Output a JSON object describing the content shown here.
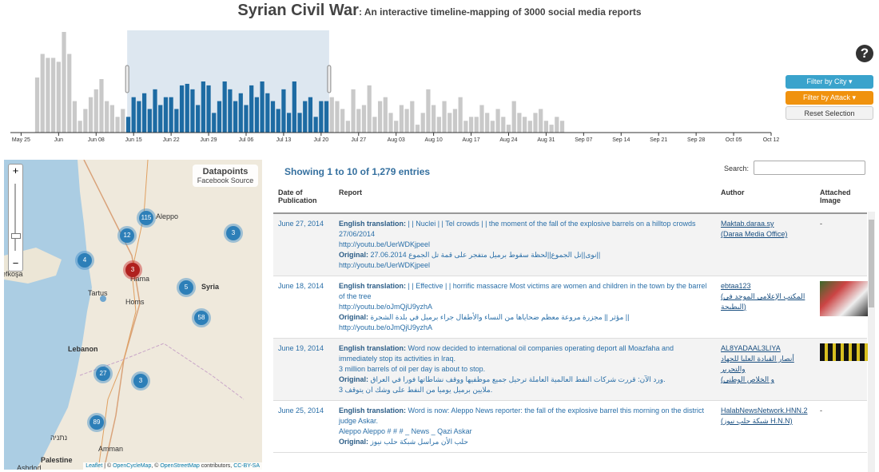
{
  "header": {
    "title": "Syrian Civil War",
    "subtitle": ": An interactive timeline-mapping of 3000 social media reports"
  },
  "chart_data": {
    "type": "bar",
    "xlim": [
      -2,
      140
    ],
    "ylim": [
      0,
      130
    ],
    "xticks": [
      {
        "value": 0,
        "label": "May 25"
      },
      {
        "value": 7,
        "label": "Jun"
      },
      {
        "value": 14,
        "label": "Jun 08"
      },
      {
        "value": 21,
        "label": "Jun 15"
      },
      {
        "value": 28,
        "label": "Jun 22"
      },
      {
        "value": 35,
        "label": "Jun 29"
      },
      {
        "value": 42,
        "label": "Jul 06"
      },
      {
        "value": 49,
        "label": "Jul 13"
      },
      {
        "value": 56,
        "label": "Jul 20"
      },
      {
        "value": 63,
        "label": "Jul 27"
      },
      {
        "value": 70,
        "label": "Aug 03"
      },
      {
        "value": 77,
        "label": "Aug 10"
      },
      {
        "value": 84,
        "label": "Aug 17"
      },
      {
        "value": 91,
        "label": "Aug 24"
      },
      {
        "value": 98,
        "label": "Aug 31"
      },
      {
        "value": 105,
        "label": "Sep 07"
      },
      {
        "value": 112,
        "label": "Sep 14"
      },
      {
        "value": 119,
        "label": "Sep 21"
      },
      {
        "value": 126,
        "label": "Sep 28"
      },
      {
        "value": 133,
        "label": "Oct 05"
      },
      {
        "value": 140,
        "label": "Oct 12"
      }
    ],
    "x": [
      3,
      4,
      5,
      6,
      7,
      8,
      9,
      10,
      11,
      12,
      13,
      14,
      15,
      16,
      17,
      18,
      19,
      20,
      21,
      22,
      23,
      24,
      25,
      26,
      27,
      28,
      29,
      30,
      31,
      32,
      33,
      34,
      35,
      36,
      37,
      38,
      39,
      40,
      41,
      42,
      43,
      44,
      45,
      46,
      47,
      48,
      49,
      50,
      51,
      52,
      53,
      54,
      55,
      56,
      57,
      58,
      59,
      60,
      61,
      62,
      63,
      64,
      65,
      66,
      67,
      68,
      69,
      70,
      71,
      72,
      73,
      74,
      75,
      76,
      77,
      78,
      79,
      80,
      81,
      82,
      83,
      84,
      85,
      86,
      87,
      88,
      89,
      90,
      91,
      92,
      93,
      94,
      95,
      96,
      97,
      98,
      99,
      100,
      101
    ],
    "values": [
      70,
      100,
      95,
      95,
      90,
      128,
      100,
      40,
      15,
      30,
      45,
      55,
      68,
      40,
      35,
      20,
      30,
      20,
      45,
      40,
      50,
      30,
      55,
      35,
      45,
      45,
      30,
      60,
      62,
      55,
      35,
      65,
      60,
      25,
      40,
      65,
      55,
      40,
      50,
      35,
      60,
      45,
      65,
      50,
      40,
      30,
      55,
      25,
      65,
      25,
      40,
      45,
      20,
      40,
      40,
      45,
      40,
      30,
      15,
      55,
      30,
      35,
      60,
      20,
      40,
      45,
      25,
      15,
      35,
      30,
      40,
      10,
      25,
      55,
      35,
      20,
      40,
      25,
      30,
      45,
      15,
      20,
      20,
      35,
      25,
      15,
      30,
      20,
      10,
      40,
      25,
      20,
      15,
      25,
      30,
      15,
      10,
      20,
      15
    ],
    "color": "#c9c9c9",
    "selected_color": "#1d6ba3",
    "selection": [
      19.8,
      57.5
    ]
  },
  "controls": {
    "filter_city": "Filter by City",
    "filter_attack": "Filter by Attack",
    "reset": "Reset Selection"
  },
  "map": {
    "zoom_in": "+",
    "zoom_out": "−",
    "legend_title": "Datapoints",
    "legend_item": "Facebook Source",
    "clusters": [
      115,
      12,
      3,
      4,
      3,
      5,
      58,
      27,
      3,
      89
    ],
    "places": [
      "Aleppo",
      "Syria",
      "Hama",
      "Tartus",
      "Homs",
      "Lebanon",
      "נתניה",
      "Amman",
      "Palestine",
      "Ashdod",
      "Lefkoşa"
    ],
    "attribution": [
      "Leaflet",
      " | © ",
      "OpenCycleMap",
      ", © ",
      "OpenStreetMap",
      " contributors, ",
      "CC-BY-SA"
    ]
  },
  "table": {
    "info": "Showing 1 to 10 of 1,279 entries",
    "search_label": "Search:",
    "columns": [
      "Date of Publication",
      "Report",
      "Author",
      "Attached Image"
    ],
    "rows": [
      {
        "date": "June 27, 2014",
        "report": [
          {
            "label": "English translation:",
            "text": " | | Nuclei | | Tel crowds | | the moment of the fall of the explosive barrels on a hilltop crowds 27/06/2014"
          },
          {
            "text": "http://youtu.be/UerWDKjpeel"
          },
          {
            "label": "Original:",
            "text": " نوى||تل الجموع||لحظة سقوط برميل متفجر على قمة تل الجموع 27.06.2014||"
          },
          {
            "text": "http://youtu.be/UerWDKjpeel"
          }
        ],
        "author": [
          "Maktab.daraa.sy",
          "(Daraa Media Office)"
        ],
        "image": "-"
      },
      {
        "date": "June 18, 2014",
        "report": [
          {
            "label": "English translation:",
            "text": " | | Effective | | horrific massacre Most victims are women and children in the town by the barrel of the tree"
          },
          {
            "text": "http://youtu.be/oJmQjU9yzhA"
          },
          {
            "label": "Original:",
            "text": " مؤثر || مجزرة مروعة معظم ضحاياها من النساء والأطفال جراء برميل في بلدة الشجرة ||"
          },
          {
            "text": "http://youtu.be/oJmQjU9yzhA"
          }
        ],
        "author": [
          "ebtaa123",
          "(المكتب الإعلامي الموحد في البطيحة)"
        ]
      },
      {
        "date": "June 19, 2014",
        "report": [
          {
            "label": "English translation:",
            "text": " Word now decided to international oil companies operating deport all Moazfaha and immediately stop its activities in Iraq."
          },
          {
            "text": "3 million barrels of oil per day is about to stop."
          },
          {
            "label": "Original:",
            "text": " ورد الآن: قررت شركات النفط العالمية العاملة ترحيل جميع موظفيها ووقف نشاطاتها فورا في العراق."
          },
          {
            "text": "3 ملايين برميل يوميا من النفط على وشك ان يتوقف."
          }
        ],
        "author": [
          "AL8YADAAL3LIYA",
          "أنصار القيادة العليا للجهاد والتحرير",
          "(و الخلاص الوطني"
        ]
      },
      {
        "date": "June 25, 2014",
        "report": [
          {
            "label": "English translation:",
            "text": " Word is now: Aleppo News reporter: the fall of the explosive barrel this morning on the district judge Askar."
          },
          {
            "text": "Aleppo Aleppo # # # _ News _ Qazi Askar"
          },
          {
            "label": "Original:",
            "text": " حلب الأن مراسل شبكة حلب نيوز"
          }
        ],
        "author": [
          "HalabNewsNetwork.HNN.2",
          "(شبكة حلب نيوز H.N.N)"
        ],
        "image": "-"
      }
    ]
  }
}
